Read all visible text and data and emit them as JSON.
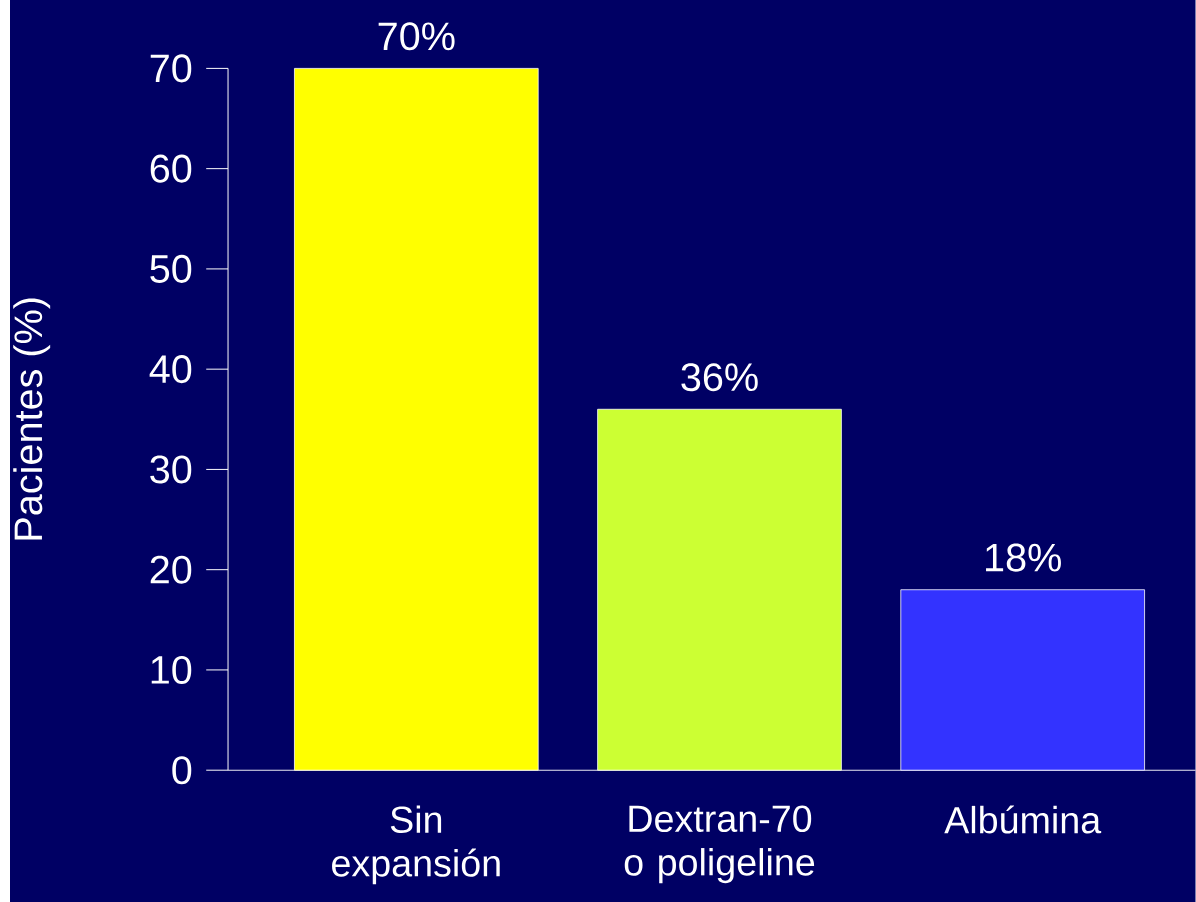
{
  "chart_data": {
    "type": "bar",
    "ylabel": "Pacientes (%)",
    "categories": [
      "Sin expansión",
      "Dextran-70 o poligeline",
      "Albúmina"
    ],
    "values": [
      70,
      36,
      18
    ],
    "colors": [
      "#ffff00",
      "#ccff33",
      "#3333ff"
    ],
    "value_labels": [
      "70%",
      "36%",
      "18%"
    ],
    "ylim": [
      0,
      70
    ],
    "yticks": [
      0,
      10,
      20,
      30,
      40,
      50,
      60,
      70
    ]
  }
}
